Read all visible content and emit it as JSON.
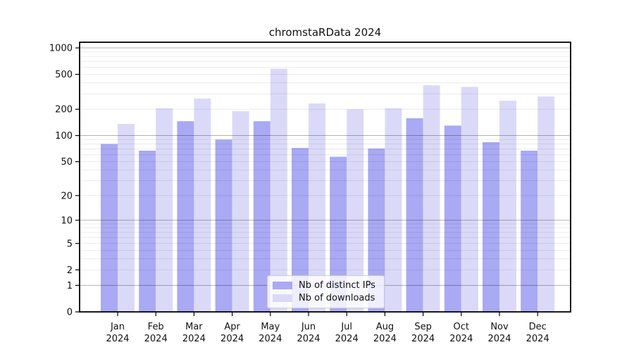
{
  "title": "chromstaRData 2024",
  "legend": {
    "items": [
      {
        "label": "Nb of distinct IPs",
        "color": "#a9a9f4"
      },
      {
        "label": "Nb of downloads",
        "color": "#dadaf8"
      }
    ]
  },
  "chart_data": {
    "type": "bar",
    "title": "chromstaRData 2024",
    "y_scale": "log1p",
    "ylim": [
      0,
      1160
    ],
    "grid": "horizontal; light minor lines, darker lines at powers of 10",
    "legend_position": "inside-bottom-center",
    "categories": [
      {
        "month": "Jan",
        "year": "2024"
      },
      {
        "month": "Feb",
        "year": "2024"
      },
      {
        "month": "Mar",
        "year": "2024"
      },
      {
        "month": "Apr",
        "year": "2024"
      },
      {
        "month": "May",
        "year": "2024"
      },
      {
        "month": "Jun",
        "year": "2024"
      },
      {
        "month": "Jul",
        "year": "2024"
      },
      {
        "month": "Aug",
        "year": "2024"
      },
      {
        "month": "Sep",
        "year": "2024"
      },
      {
        "month": "Oct",
        "year": "2024"
      },
      {
        "month": "Nov",
        "year": "2024"
      },
      {
        "month": "Dec",
        "year": "2024"
      }
    ],
    "y_axis": {
      "ticks": [
        0,
        1,
        2,
        5,
        10,
        20,
        50,
        100,
        200,
        500,
        1000
      ],
      "major_gridlines": [
        1,
        10,
        100,
        1000
      ],
      "max": 1160
    },
    "series": [
      {
        "name": "Nb of distinct IPs",
        "color": "#a9a9f4",
        "values": [
          80,
          67,
          146,
          90,
          146,
          72,
          57,
          71,
          158,
          130,
          84,
          67
        ]
      },
      {
        "name": "Nb of downloads",
        "color": "#dadaf8",
        "values": [
          136,
          205,
          265,
          190,
          580,
          233,
          200,
          205,
          375,
          360,
          250,
          280
        ]
      }
    ]
  }
}
